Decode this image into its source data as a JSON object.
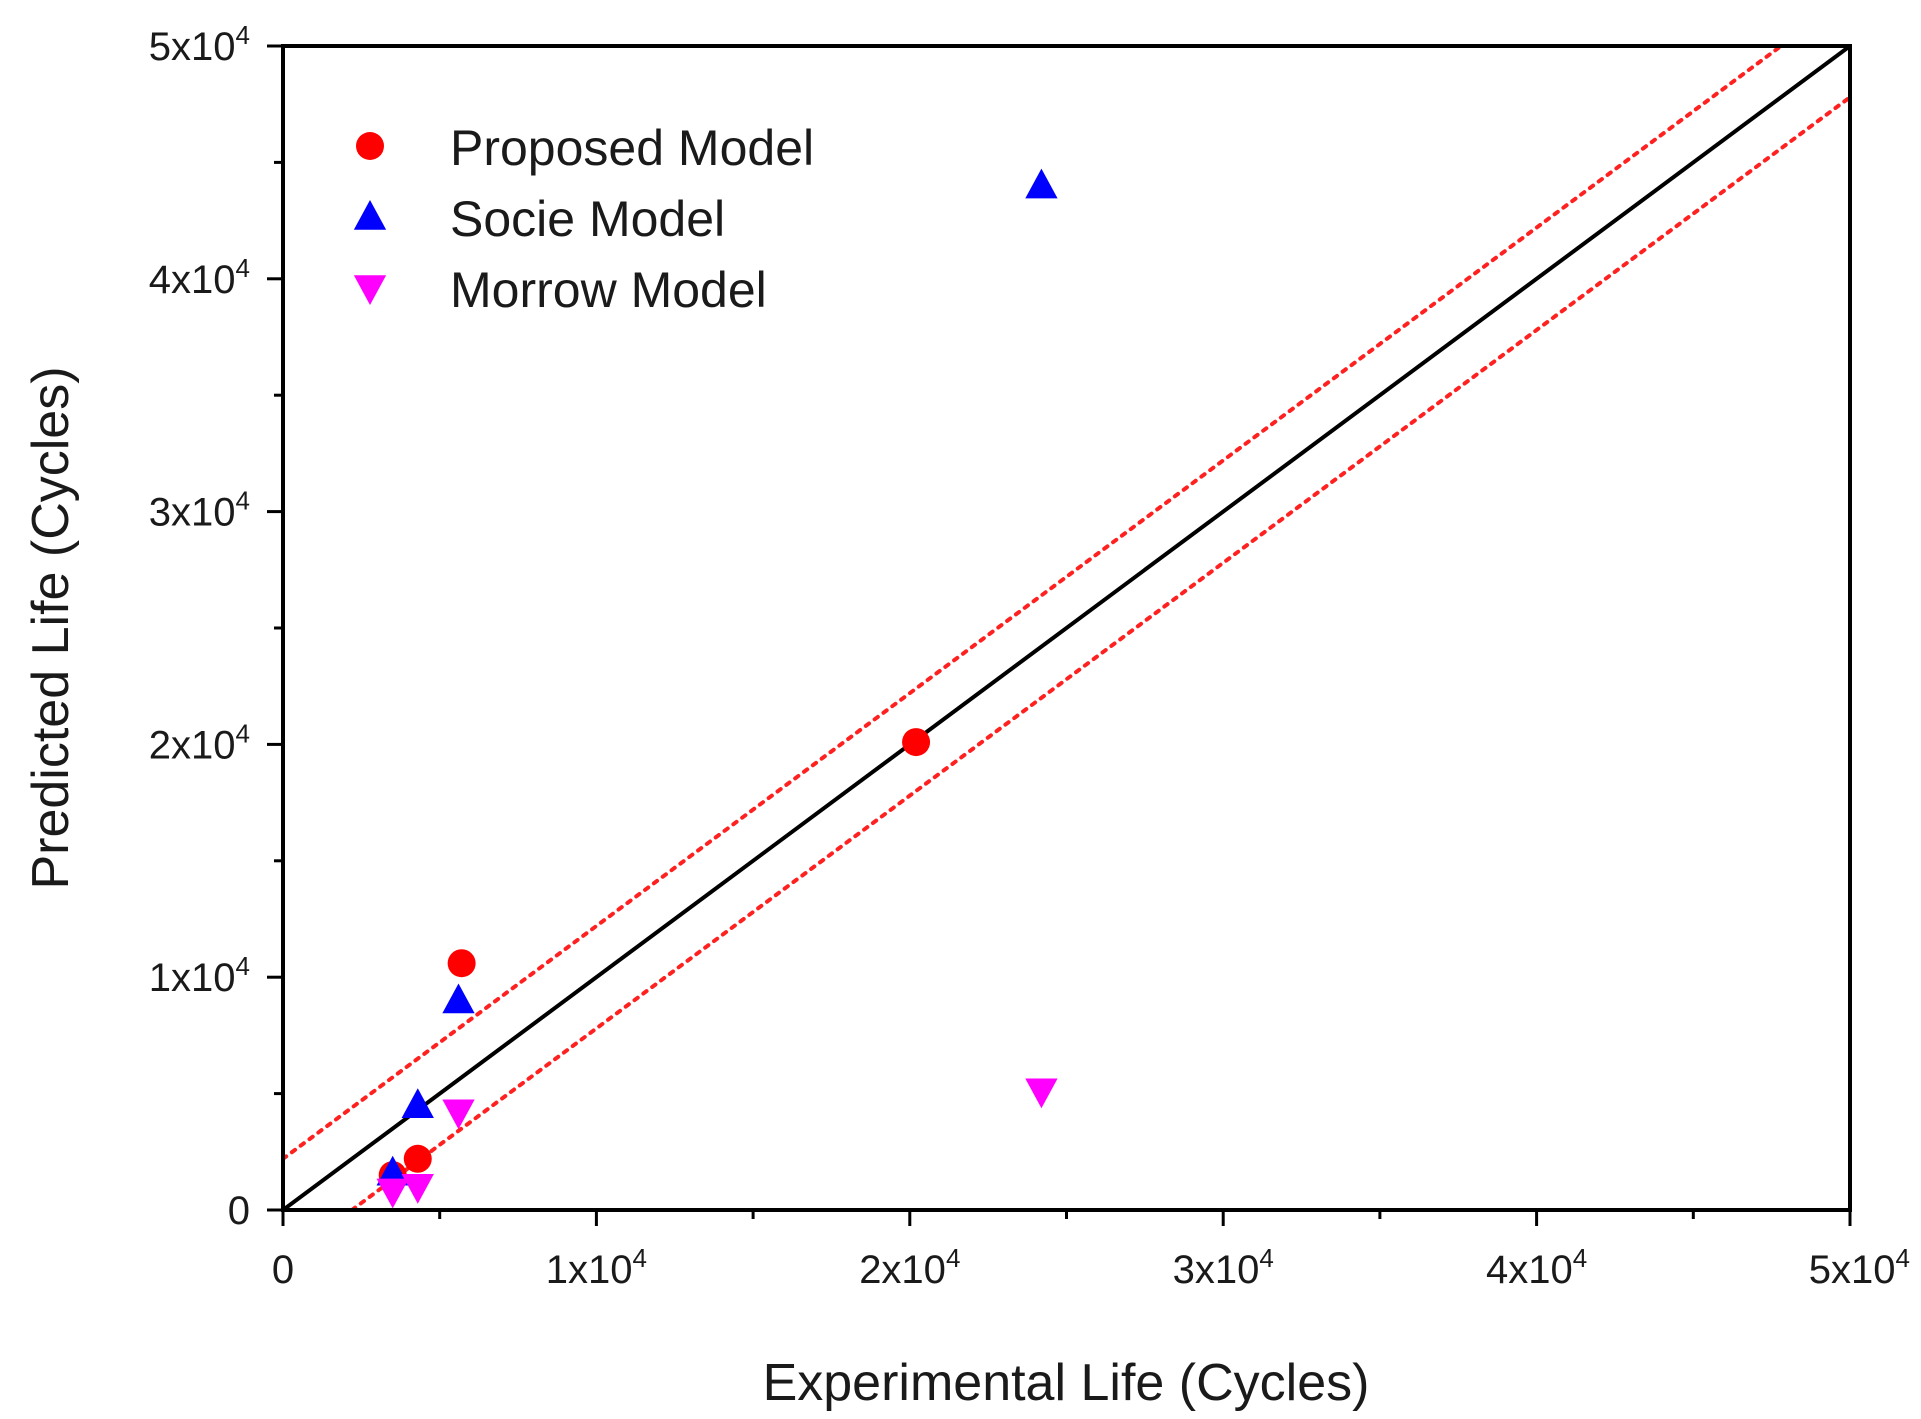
{
  "chart_data": {
    "type": "scatter",
    "title": "",
    "xlabel": "Experimental Life (Cycles)",
    "ylabel": "Predicted Life (Cycles)",
    "xlim": [
      0,
      50000
    ],
    "ylim": [
      0,
      50000
    ],
    "x_ticks": [
      {
        "value": 0,
        "label": "0",
        "exp": ""
      },
      {
        "value": 10000,
        "label": "1x10",
        "exp": "4"
      },
      {
        "value": 20000,
        "label": "2x10",
        "exp": "4"
      },
      {
        "value": 30000,
        "label": "3x10",
        "exp": "4"
      },
      {
        "value": 40000,
        "label": "4x10",
        "exp": "4"
      },
      {
        "value": 50000,
        "label": "5x10",
        "exp": "4"
      }
    ],
    "y_ticks": [
      {
        "value": 0,
        "label": "0",
        "exp": ""
      },
      {
        "value": 10000,
        "label": "1x10",
        "exp": "4"
      },
      {
        "value": 20000,
        "label": "2x10",
        "exp": "4"
      },
      {
        "value": 30000,
        "label": "3x10",
        "exp": "4"
      },
      {
        "value": 40000,
        "label": "4x10",
        "exp": "4"
      },
      {
        "value": 50000,
        "label": "5x10",
        "exp": "4"
      }
    ],
    "minor_tick_step": 5000,
    "legend_position": "top-left",
    "series": [
      {
        "name": "Proposed Model",
        "marker": "circle",
        "color": "#ff0000",
        "points": [
          {
            "x": 3500,
            "y": 1500
          },
          {
            "x": 4300,
            "y": 2200
          },
          {
            "x": 5700,
            "y": 10600
          },
          {
            "x": 20200,
            "y": 20100
          }
        ]
      },
      {
        "name": "Socie Model",
        "marker": "triangle-up",
        "color": "#0000ff",
        "points": [
          {
            "x": 3500,
            "y": 1600
          },
          {
            "x": 4300,
            "y": 4500
          },
          {
            "x": 5600,
            "y": 9000
          },
          {
            "x": 24200,
            "y": 44000
          }
        ]
      },
      {
        "name": "Morrow Model",
        "marker": "triangle-down",
        "color": "#ff00ff",
        "points": [
          {
            "x": 3500,
            "y": 800
          },
          {
            "x": 4300,
            "y": 1000
          },
          {
            "x": 5600,
            "y": 4200
          },
          {
            "x": 24200,
            "y": 5100
          }
        ]
      }
    ],
    "reference_lines": [
      {
        "kind": "identity",
        "style": "solid",
        "color": "#000000",
        "from": [
          0,
          0
        ],
        "to": [
          50000,
          50000
        ]
      },
      {
        "kind": "upper-band",
        "style": "dotted",
        "color": "#ff2020",
        "from": [
          0,
          2200
        ],
        "to": [
          50000,
          52200
        ]
      },
      {
        "kind": "lower-band",
        "style": "dotted",
        "color": "#ff2020",
        "from": [
          2200,
          0
        ],
        "to": [
          50000,
          47800
        ]
      }
    ]
  }
}
